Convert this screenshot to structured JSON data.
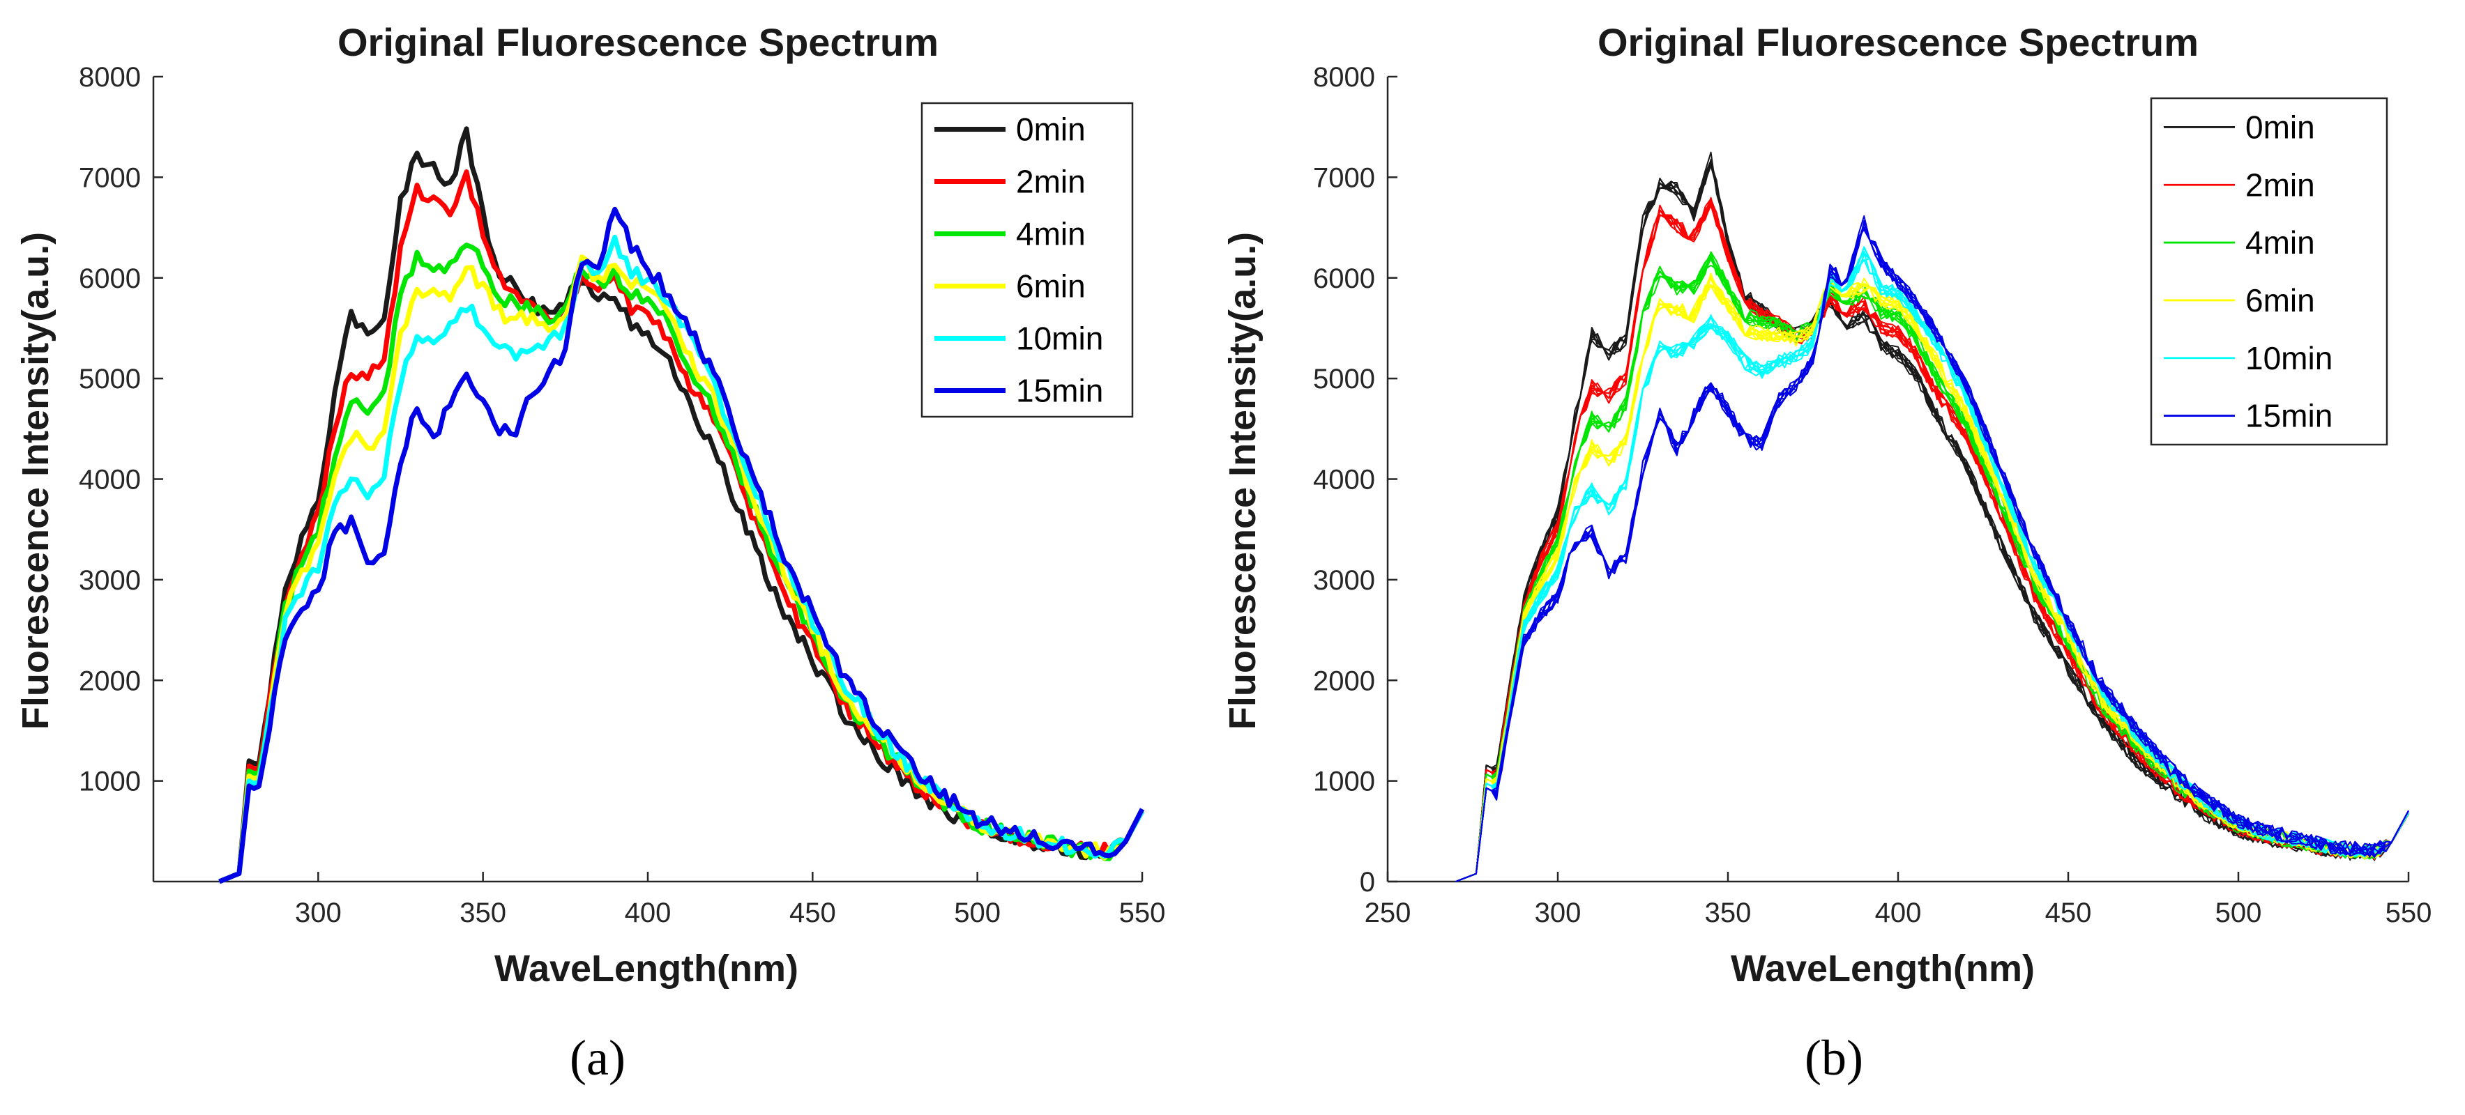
{
  "chart_data": [
    {
      "type": "line",
      "panel": "(a)",
      "title": "Original Fluorescence Spectrum",
      "xlabel": "WaveLength(nm)",
      "ylabel": "Fluorescence Intensity(a.u.)",
      "xlim": [
        250,
        550
      ],
      "ylim": [
        0,
        8000
      ],
      "xticks": [
        300,
        350,
        400,
        450,
        500,
        550
      ],
      "yticks": [
        1000,
        2000,
        3000,
        4000,
        5000,
        6000,
        7000,
        8000
      ],
      "legend_position": "top-right",
      "legend_line_width": "thick",
      "replicates_per_series": 1,
      "x": [
        270,
        276,
        279,
        282,
        290,
        295,
        300,
        305,
        310,
        315,
        320,
        325,
        330,
        335,
        340,
        345,
        350,
        355,
        360,
        365,
        370,
        375,
        380,
        385,
        390,
        395,
        400,
        405,
        410,
        420,
        430,
        440,
        450,
        460,
        470,
        480,
        490,
        500,
        510,
        520,
        530,
        540,
        545,
        550
      ],
      "series": [
        {
          "name": "0min",
          "color": "#1a1a1a",
          "values": [
            0,
            80,
            1200,
            1150,
            2900,
            3400,
            3800,
            4800,
            5650,
            5450,
            5600,
            6800,
            7200,
            7150,
            6900,
            7450,
            6600,
            6050,
            5900,
            5750,
            5650,
            5750,
            6000,
            5750,
            5850,
            5550,
            5450,
            5250,
            4900,
            4300,
            3500,
            2750,
            2200,
            1650,
            1250,
            950,
            700,
            520,
            430,
            370,
            300,
            290,
            400,
            700
          ]
        },
        {
          "name": "2min",
          "color": "#ff0000",
          "values": [
            0,
            80,
            1150,
            1100,
            2800,
            3300,
            3650,
            4550,
            5100,
            5000,
            5200,
            6300,
            6900,
            6750,
            6650,
            7000,
            6450,
            6000,
            5850,
            5750,
            5600,
            5650,
            6000,
            5850,
            5950,
            5700,
            5650,
            5450,
            5100,
            4600,
            3800,
            2950,
            2350,
            1750,
            1350,
            1000,
            750,
            550,
            450,
            380,
            310,
            300,
            400,
            700
          ]
        },
        {
          "name": "4min",
          "color": "#00e600",
          "values": [
            0,
            80,
            1100,
            1050,
            2750,
            3150,
            3500,
            4250,
            4750,
            4650,
            4900,
            5800,
            6250,
            6100,
            6100,
            6400,
            6100,
            5800,
            5750,
            5700,
            5600,
            5700,
            6100,
            5950,
            6050,
            5850,
            5800,
            5600,
            5250,
            4700,
            3900,
            3050,
            2450,
            1800,
            1400,
            1050,
            780,
            570,
            460,
            390,
            320,
            300,
            400,
            700
          ]
        },
        {
          "name": "6min",
          "color": "#ffff00",
          "values": [
            0,
            80,
            1050,
            1000,
            2700,
            3050,
            3350,
            4050,
            4450,
            4300,
            4500,
            5400,
            5900,
            5850,
            5800,
            6150,
            5900,
            5650,
            5600,
            5600,
            5550,
            5650,
            6150,
            6000,
            6100,
            5950,
            5900,
            5700,
            5400,
            4800,
            4000,
            3150,
            2500,
            1850,
            1450,
            1080,
            800,
            580,
            470,
            400,
            320,
            300,
            400,
            700
          ]
        },
        {
          "name": "10min",
          "color": "#00ffff",
          "values": [
            0,
            80,
            1000,
            950,
            2600,
            2900,
            3150,
            3750,
            4000,
            3800,
            4050,
            5000,
            5450,
            5400,
            5500,
            5700,
            5550,
            5300,
            5200,
            5300,
            5350,
            5500,
            6150,
            6050,
            6400,
            6050,
            6000,
            5800,
            5550,
            4950,
            4100,
            3250,
            2600,
            1950,
            1500,
            1120,
            830,
            600,
            480,
            410,
            330,
            310,
            400,
            700
          ]
        },
        {
          "name": "15min",
          "color": "#0000e6",
          "values": [
            0,
            80,
            950,
            900,
            2450,
            2700,
            2900,
            3450,
            3550,
            3150,
            3300,
            4200,
            4750,
            4400,
            4750,
            5050,
            4800,
            4500,
            4450,
            4900,
            5050,
            5300,
            6200,
            6100,
            6700,
            6300,
            6100,
            5900,
            5650,
            5050,
            4200,
            3350,
            2650,
            2000,
            1550,
            1150,
            850,
            620,
            500,
            420,
            340,
            320,
            400,
            720
          ]
        }
      ]
    },
    {
      "type": "line",
      "panel": "(b)",
      "title": "Original Fluorescence Spectrum",
      "xlabel": "WaveLength(nm)",
      "ylabel": "Fluorescence Intensity(a.u.)",
      "xlim": [
        250,
        550
      ],
      "ylim": [
        0,
        8000
      ],
      "xticks": [
        250,
        300,
        350,
        400,
        450,
        500,
        550
      ],
      "yticks": [
        0,
        1000,
        2000,
        3000,
        4000,
        5000,
        6000,
        7000,
        8000
      ],
      "legend_position": "top-right",
      "legend_line_width": "thin",
      "replicates_per_series": 8,
      "x": [
        270,
        276,
        279,
        282,
        290,
        295,
        300,
        305,
        310,
        315,
        320,
        325,
        330,
        335,
        340,
        345,
        350,
        355,
        360,
        365,
        370,
        375,
        380,
        385,
        390,
        395,
        400,
        405,
        410,
        420,
        430,
        440,
        450,
        460,
        470,
        480,
        490,
        500,
        510,
        520,
        530,
        540,
        545,
        550
      ],
      "series": [
        {
          "name": "0min",
          "color": "#1a1a1a",
          "values": [
            0,
            80,
            1200,
            1150,
            2900,
            3400,
            3800,
            4800,
            5650,
            5450,
            5600,
            6800,
            7200,
            7150,
            6900,
            7450,
            6600,
            6050,
            5900,
            5750,
            5650,
            5750,
            6000,
            5750,
            5850,
            5550,
            5450,
            5250,
            4900,
            4300,
            3500,
            2750,
            2200,
            1650,
            1250,
            950,
            700,
            520,
            430,
            370,
            300,
            290,
            400,
            700
          ]
        },
        {
          "name": "2min",
          "color": "#ff0000",
          "values": [
            0,
            80,
            1150,
            1100,
            2800,
            3300,
            3650,
            4550,
            5100,
            5000,
            5200,
            6300,
            6900,
            6750,
            6650,
            7000,
            6450,
            6000,
            5850,
            5750,
            5600,
            5650,
            6000,
            5850,
            5950,
            5700,
            5650,
            5450,
            5100,
            4600,
            3800,
            2950,
            2350,
            1750,
            1350,
            1000,
            750,
            550,
            450,
            380,
            310,
            300,
            400,
            700
          ]
        },
        {
          "name": "4min",
          "color": "#00e600",
          "values": [
            0,
            80,
            1100,
            1050,
            2750,
            3150,
            3500,
            4250,
            4750,
            4650,
            4900,
            5800,
            6250,
            6100,
            6100,
            6400,
            6100,
            5800,
            5750,
            5700,
            5600,
            5700,
            6100,
            5950,
            6050,
            5850,
            5800,
            5600,
            5250,
            4700,
            3900,
            3050,
            2450,
            1800,
            1400,
            1050,
            780,
            570,
            460,
            390,
            320,
            300,
            400,
            700
          ]
        },
        {
          "name": "6min",
          "color": "#ffff00",
          "values": [
            0,
            80,
            1050,
            1000,
            2700,
            3050,
            3350,
            4050,
            4450,
            4300,
            4500,
            5400,
            5900,
            5850,
            5800,
            6150,
            5900,
            5650,
            5600,
            5600,
            5550,
            5650,
            6150,
            6000,
            6100,
            5950,
            5900,
            5700,
            5400,
            4800,
            4000,
            3150,
            2500,
            1850,
            1450,
            1080,
            800,
            580,
            470,
            400,
            320,
            300,
            400,
            700
          ]
        },
        {
          "name": "10min",
          "color": "#00ffff",
          "values": [
            0,
            80,
            1000,
            950,
            2600,
            2900,
            3150,
            3750,
            4000,
            3800,
            4050,
            5000,
            5450,
            5400,
            5500,
            5700,
            5550,
            5300,
            5200,
            5300,
            5350,
            5500,
            6150,
            6050,
            6400,
            6050,
            6000,
            5800,
            5550,
            4950,
            4100,
            3250,
            2600,
            1950,
            1500,
            1120,
            830,
            600,
            480,
            410,
            330,
            310,
            400,
            700
          ]
        },
        {
          "name": "15min",
          "color": "#0000e6",
          "values": [
            0,
            80,
            950,
            900,
            2450,
            2700,
            2900,
            3450,
            3550,
            3150,
            3300,
            4200,
            4750,
            4400,
            4750,
            5050,
            4800,
            4500,
            4450,
            4900,
            5050,
            5300,
            6200,
            6100,
            6700,
            6300,
            6100,
            5900,
            5650,
            5050,
            4200,
            3350,
            2650,
            2000,
            1550,
            1150,
            850,
            620,
            500,
            420,
            340,
            320,
            400,
            720
          ]
        }
      ]
    }
  ]
}
